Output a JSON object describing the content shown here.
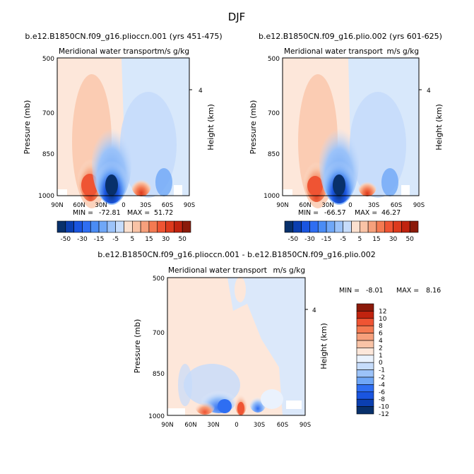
{
  "page_title": "DJF",
  "panels": [
    {
      "title": "b.e12.B1850CN.f09_g16.plioccn.001 (yrs 451-475)",
      "subtitle": "Meridional water transport",
      "units": "m/s g/kg",
      "stats": {
        "min_label": "MIN =",
        "min": "-72.81",
        "max_label": "MAX =",
        "max": "51.72"
      }
    },
    {
      "title": "b.e12.B1850CN.f09_g16.plio.002 (yrs 601-625)",
      "subtitle": "Meridional water transport",
      "units": "m/s g/kg",
      "stats": {
        "min_label": "MIN =",
        "min": "-66.57",
        "max_label": "MAX =",
        "max": "46.27"
      }
    },
    {
      "title": "b.e12.B1850CN.f09_g16.plioccn.001 - b.e12.B1850CN.f09_g16.plio.002",
      "subtitle": "Meridional water transport",
      "units": "m/s g/kg",
      "stats": {
        "min_label": "MIN =",
        "min": "-8.01",
        "max_label": "MAX =",
        "max": "8.16"
      }
    }
  ],
  "colors": {
    "diverging_main": [
      "#08306b",
      "#0b3fb0",
      "#1a55e0",
      "#2e6ef2",
      "#4a8cf5",
      "#6fa7f7",
      "#9cc3f9",
      "#c6dcfb",
      "#fbe0cf",
      "#f9c3a6",
      "#f6a07c",
      "#f47a52",
      "#ef5433",
      "#dd3a1d",
      "#c0230f",
      "#8b1a0a"
    ],
    "diverging_diff": [
      "#08306b",
      "#0b3fb0",
      "#1a55e0",
      "#2e6ef2",
      "#6fa7f7",
      "#9cc3f9",
      "#c6dcfb",
      "#eaf2fd",
      "#fde7da",
      "#f9c3a6",
      "#f6a07c",
      "#f47a52",
      "#ef5433",
      "#c0230f",
      "#8b1a0a"
    ],
    "warm_background": "#fde7da",
    "cool_background": "#d8e8fb"
  },
  "chart_data": [
    {
      "type": "heatmap",
      "title": "b.e12.B1850CN.f09_g16.plioccn.001 (yrs 451-475)",
      "ylabel": "Pressure (mb)",
      "y2label": "Height (km)",
      "x_ticks": [
        "90N",
        "60N",
        "30N",
        "0",
        "30S",
        "60S",
        "90S"
      ],
      "y_ticks": [
        500,
        700,
        850,
        1000
      ],
      "y2_ticks": [
        4
      ],
      "colorbar_labels": [
        "-50",
        "-30",
        "-15",
        "-5",
        "5",
        "15",
        "30",
        "50"
      ],
      "min": -72.81,
      "max": 51.72
    },
    {
      "type": "heatmap",
      "title": "b.e12.B1850CN.f09_g16.plio.002 (yrs 601-625)",
      "ylabel": "Pressure (mb)",
      "y2label": "Height (km)",
      "x_ticks": [
        "90N",
        "60N",
        "30N",
        "0",
        "30S",
        "60S",
        "90S"
      ],
      "y_ticks": [
        500,
        700,
        850,
        1000
      ],
      "y2_ticks": [
        4
      ],
      "colorbar_labels": [
        "-50",
        "-30",
        "-15",
        "-5",
        "5",
        "15",
        "30",
        "50"
      ],
      "min": -66.57,
      "max": 46.27
    },
    {
      "type": "heatmap",
      "title": "b.e12.B1850CN.f09_g16.plioccn.001 - b.e12.B1850CN.f09_g16.plio.002",
      "ylabel": "Pressure (mb)",
      "y2label": "Height (km)",
      "x_ticks": [
        "90N",
        "60N",
        "30N",
        "0",
        "30S",
        "60S",
        "90S"
      ],
      "y_ticks": [
        500,
        700,
        850,
        1000
      ],
      "y2_ticks": [
        4
      ],
      "colorbar_labels": [
        "12",
        "10",
        "8",
        "6",
        "4",
        "2",
        "1",
        "0",
        "-1",
        "-2",
        "-4",
        "-6",
        "-8",
        "-10",
        "-12"
      ],
      "min": -8.01,
      "max": 8.16
    }
  ]
}
